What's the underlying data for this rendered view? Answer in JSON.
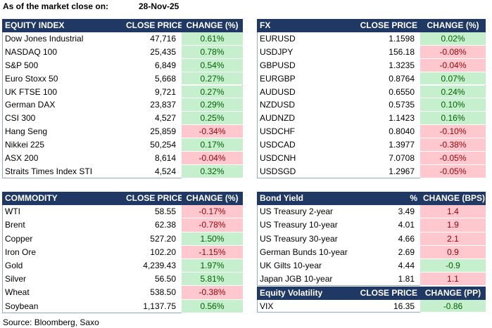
{
  "header": {
    "label": "As of the market close on:",
    "date": "28-Nov-25"
  },
  "equity": {
    "columns": [
      "EQUITY INDEX",
      "CLOSE PRICE",
      "CHANGE (%)"
    ],
    "rows": [
      [
        "Dow Jones Industrial",
        "47,716",
        "0.61%"
      ],
      [
        "NASDAQ 100",
        "25,435",
        "0.78%"
      ],
      [
        "S&P 500",
        "6,849",
        "0.54%"
      ],
      [
        "Euro Stoxx 50",
        "5,668",
        "0.27%"
      ],
      [
        "UK FTSE 100",
        "9,721",
        "0.27%"
      ],
      [
        "German DAX",
        "23,837",
        "0.29%"
      ],
      [
        "CSI 300",
        "4,527",
        "0.25%"
      ],
      [
        "Hang Seng",
        "25,859",
        "-0.34%"
      ],
      [
        "Nikkei 225",
        "50,254",
        "0.17%"
      ],
      [
        "ASX 200",
        "8,614",
        "-0.04%"
      ],
      [
        "Straits Times Index STI",
        "4,524",
        "0.32%"
      ]
    ]
  },
  "fx": {
    "columns": [
      "FX",
      "CLOSE PRICE",
      "CHANGE (%)"
    ],
    "rows": [
      [
        "EURUSD",
        "1.1598",
        "0.02%"
      ],
      [
        "USDJPY",
        "156.18",
        "-0.08%"
      ],
      [
        "GBPUSD",
        "1.3235",
        "-0.04%"
      ],
      [
        "EURGBP",
        "0.8764",
        "0.07%"
      ],
      [
        "AUDUSD",
        "0.6550",
        "0.24%"
      ],
      [
        "NZDUSD",
        "0.5735",
        "0.10%"
      ],
      [
        "AUDNZD",
        "1.1423",
        "0.16%"
      ],
      [
        "USDCHF",
        "0.8040",
        "-0.10%"
      ],
      [
        "USDCAD",
        "1.3977",
        "-0.38%"
      ],
      [
        "USDCNH",
        "7.0708",
        "-0.05%"
      ],
      [
        "USDSGD",
        "1.2967",
        "-0.05%"
      ]
    ]
  },
  "commodity": {
    "columns": [
      "COMMODITY",
      "CLOSE PRICE",
      "CHANGE (%)"
    ],
    "rows": [
      [
        "WTI",
        "58.55",
        "-0.17%"
      ],
      [
        "Brent",
        "62.38",
        "-0.78%"
      ],
      [
        "Copper",
        "527.20",
        "1.50%"
      ],
      [
        "Iron Ore",
        "102.20",
        "-1.15%"
      ],
      [
        "Gold",
        "4,239.43",
        "1.97%"
      ],
      [
        "Silver",
        "56.50",
        "5.81%"
      ],
      [
        "Wheat",
        "538.50",
        "-0.38%"
      ],
      [
        "Soybean",
        "1,137.75",
        "0.56%"
      ]
    ]
  },
  "bond": {
    "columns": [
      "Bond Yield",
      "%",
      "CHANGE (BPS)"
    ],
    "rows": [
      [
        "US Treasury 2-year",
        "3.49",
        "1.4"
      ],
      [
        "US Treasury 10-year",
        "4.01",
        "1.9"
      ],
      [
        "US Treasury 30-year",
        "4.66",
        "2.1"
      ],
      [
        "German Bunds 10-year",
        "2.69",
        "0.9"
      ],
      [
        "UK Gilts 10-year",
        "4.44",
        "-0.9"
      ],
      [
        "Japan JGB 10-year",
        "1.81",
        "1.1"
      ]
    ]
  },
  "volatility": {
    "columns": [
      "Equity Volatility",
      "CLOSE PRICE",
      "CHANGE (PP)"
    ],
    "rows": [
      [
        "VIX",
        "16.35",
        "-0.86"
      ]
    ]
  },
  "source": "Source: Bloomberg, Saxo"
}
